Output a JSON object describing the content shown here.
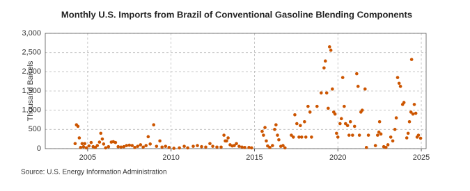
{
  "chart_data": {
    "type": "scatter",
    "title": "Monthly U.S. Imports from Brazil of Conventional Gasoline Blending Components",
    "y_label": "Thousand Barrels",
    "source": "Source: U.S. Energy Information Administration",
    "x": [
      2004.25,
      2004.33,
      2004.42,
      2004.5,
      2004.58,
      2004.67,
      2004.75,
      2004.83,
      2004.92,
      2005.08,
      2005.21,
      2005.33,
      2005.46,
      2005.58,
      2005.71,
      2005.79,
      2005.88,
      2005.96,
      2006.08,
      2006.25,
      2006.42,
      2006.54,
      2006.67,
      2006.83,
      2007.0,
      2007.17,
      2007.33,
      2007.5,
      2007.67,
      2007.83,
      2008.0,
      2008.17,
      2008.33,
      2008.5,
      2008.63,
      2008.75,
      2008.96,
      2009.13,
      2009.33,
      2009.46,
      2009.67,
      2009.88,
      2010.17,
      2010.5,
      2010.79,
      2011.0,
      2011.33,
      2011.58,
      2011.83,
      2012.08,
      2012.33,
      2012.5,
      2012.75,
      2013.0,
      2013.17,
      2013.25,
      2013.33,
      2013.42,
      2013.54,
      2013.67,
      2013.79,
      2013.92,
      2014.08,
      2014.25,
      2014.42,
      2014.67,
      2014.83,
      2015.46,
      2015.54,
      2015.63,
      2015.71,
      2015.79,
      2015.92,
      2016.08,
      2016.21,
      2016.29,
      2016.38,
      2016.46,
      2016.58,
      2016.71,
      2016.83,
      2017.21,
      2017.33,
      2017.42,
      2017.54,
      2017.67,
      2017.75,
      2017.83,
      2018.0,
      2018.08,
      2018.21,
      2018.33,
      2018.42,
      2018.75,
      2019.0,
      2019.17,
      2019.25,
      2019.33,
      2019.42,
      2019.5,
      2019.58,
      2019.67,
      2019.75,
      2019.83,
      2019.92,
      2020.0,
      2020.13,
      2020.21,
      2020.29,
      2020.38,
      2020.46,
      2020.58,
      2020.67,
      2020.75,
      2020.88,
      2021.0,
      2021.13,
      2021.21,
      2021.29,
      2021.38,
      2021.46,
      2021.63,
      2021.71,
      2021.83,
      2022.25,
      2022.38,
      2022.46,
      2022.5,
      2022.58,
      2022.75,
      2022.88,
      2023.0,
      2023.17,
      2023.29,
      2023.42,
      2023.5,
      2023.58,
      2023.67,
      2023.75,
      2023.88,
      2023.96,
      2024.13,
      2024.21,
      2024.29,
      2024.38,
      2024.42,
      2024.5,
      2024.58,
      2024.67,
      2024.75,
      2024.83,
      2024.96
    ],
    "values": [
      130,
      620,
      580,
      280,
      30,
      130,
      50,
      130,
      20,
      70,
      160,
      50,
      30,
      80,
      170,
      400,
      250,
      120,
      20,
      50,
      170,
      180,
      160,
      50,
      40,
      50,
      80,
      90,
      80,
      30,
      60,
      100,
      40,
      80,
      310,
      120,
      620,
      60,
      200,
      40,
      60,
      30,
      10,
      20,
      60,
      20,
      60,
      80,
      50,
      40,
      130,
      60,
      40,
      40,
      350,
      200,
      200,
      280,
      100,
      70,
      80,
      130,
      60,
      40,
      30,
      30,
      20,
      450,
      350,
      550,
      200,
      70,
      30,
      80,
      500,
      620,
      350,
      230,
      60,
      80,
      20,
      350,
      300,
      880,
      650,
      300,
      600,
      300,
      700,
      300,
      1100,
      950,
      300,
      1100,
      1450,
      2100,
      2280,
      1450,
      1050,
      2650,
      2560,
      1550,
      950,
      900,
      400,
      300,
      650,
      780,
      1850,
      1100,
      650,
      600,
      350,
      700,
      350,
      580,
      1950,
      1620,
      350,
      950,
      1000,
      1550,
      30,
      350,
      80,
      350,
      430,
      700,
      380,
      50,
      30,
      100,
      300,
      200,
      500,
      800,
      1850,
      1700,
      1620,
      1150,
      1200,
      280,
      400,
      700,
      950,
      2320,
      900,
      1150,
      920,
      300,
      350,
      270
    ],
    "color": "#cc5500",
    "xlim": [
      2002.46,
      2025.29
    ],
    "xticks": [
      2005,
      2010,
      2015,
      2020,
      2025
    ],
    "ylim": [
      0,
      3000
    ],
    "yticks": [
      0,
      500,
      {
        "value": 1000,
        "label": "1,000"
      },
      {
        "value": 1500,
        "label": "1,500"
      },
      {
        "value": 2000,
        "label": "2,000"
      },
      {
        "value": 2500,
        "label": "2,500"
      },
      {
        "value": 3000,
        "label": "3,000"
      }
    ],
    "grid": true
  }
}
